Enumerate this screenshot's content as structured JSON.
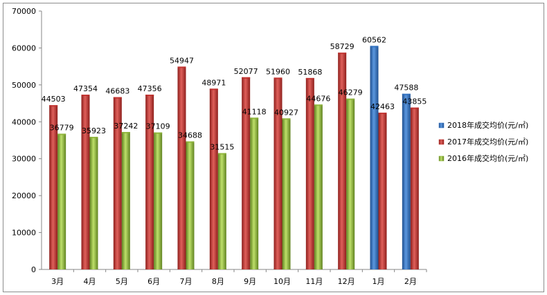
{
  "chart_data": {
    "type": "bar",
    "categories": [
      "3月",
      "4月",
      "5月",
      "6月",
      "7月",
      "8月",
      "9月",
      "10月",
      "11月",
      "12月",
      "1月",
      "2月"
    ],
    "series": [
      {
        "name": "2018年成交均价(元/㎡)",
        "color": "#2E6FBF",
        "values": [
          null,
          null,
          null,
          null,
          null,
          null,
          null,
          null,
          null,
          null,
          60562,
          47588
        ]
      },
      {
        "name": "2017年成交均价(元/㎡)",
        "color": "#C0302D",
        "values": [
          44503,
          47354,
          46683,
          47356,
          54947,
          48971,
          52077,
          51960,
          51868,
          58729,
          42463,
          43855
        ]
      },
      {
        "name": "2016年成交均价(元/㎡)",
        "color": "#8DB33A",
        "values": [
          36779,
          35923,
          37242,
          37109,
          34688,
          31515,
          41118,
          40927,
          44676,
          46279,
          null,
          null
        ]
      }
    ],
    "ylim": [
      0,
      70000
    ],
    "yticks": [
      0,
      10000,
      20000,
      30000,
      40000,
      50000,
      60000,
      70000
    ],
    "grid": false,
    "legend": "right"
  }
}
